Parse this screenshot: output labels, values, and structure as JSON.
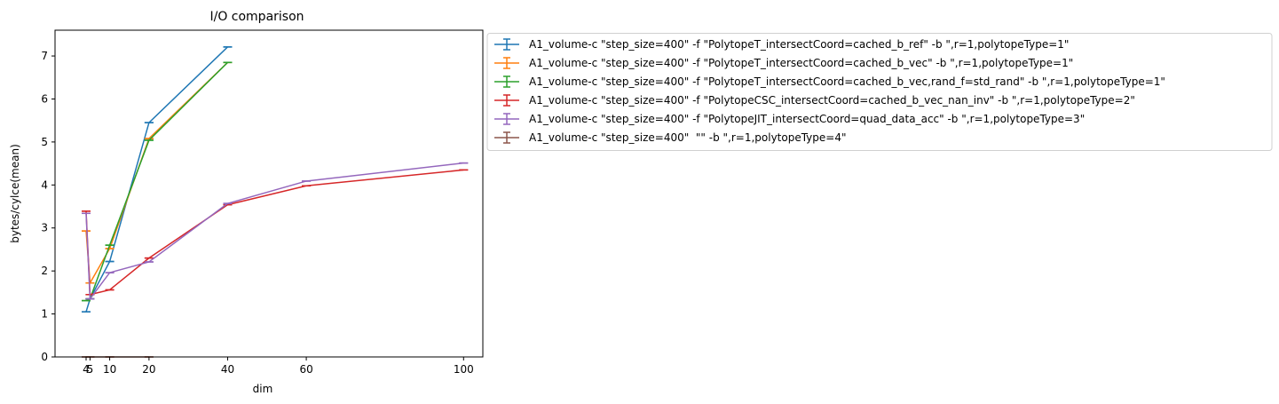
{
  "chart_data": {
    "type": "line",
    "title": "I/O comparison",
    "xlabel": "dim",
    "ylabel": "bytes/cylce(mean)",
    "xlim": [
      -3.9,
      104.9
    ],
    "ylim": [
      0,
      7.6
    ],
    "xticks": [
      4,
      5,
      10,
      20,
      40,
      60,
      100
    ],
    "xtick_labels": [
      "4",
      "5",
      "10",
      "20",
      "40",
      "60",
      "100"
    ],
    "yticks": [
      0,
      1,
      2,
      3,
      4,
      5,
      6,
      7
    ],
    "ytick_labels": [
      "0",
      "1",
      "2",
      "3",
      "4",
      "5",
      "6",
      "7"
    ],
    "grid": false,
    "legend_position": "outside-right-top",
    "series": [
      {
        "name": "A1_volume-c \"step_size=400\" -f \"PolytopeT_intersectCoord=cached_b_ref\" -b \",r=1,polytopeType=1\"",
        "color": "#1f77b4",
        "x": [
          4,
          5,
          10,
          20,
          40
        ],
        "y": [
          1.05,
          1.35,
          2.22,
          5.45,
          7.21
        ],
        "err": [
          0.0,
          0.0,
          0.0,
          0.0,
          0.0
        ]
      },
      {
        "name": "A1_volume-c \"step_size=400\" -f \"PolytopeT_intersectCoord=cached_b_vec\" -b \",r=1,polytopeType=1\"",
        "color": "#ff7f0e",
        "x": [
          4,
          5,
          10,
          20,
          40
        ],
        "y": [
          2.93,
          1.72,
          2.52,
          5.08,
          6.85
        ],
        "err": [
          0.0,
          0.0,
          0.0,
          0.0,
          0.0
        ]
      },
      {
        "name": "A1_volume-c \"step_size=400\" -f \"PolytopeT_intersectCoord=cached_b_vec,rand_f=std_rand\" -b \",r=1,polytopeType=1\"",
        "color": "#2ca02c",
        "x": [
          4,
          5,
          10,
          20,
          40
        ],
        "y": [
          1.31,
          1.35,
          2.6,
          5.04,
          6.85
        ],
        "err": [
          0.0,
          0.0,
          0.0,
          0.0,
          0.0
        ]
      },
      {
        "name": "A1_volume-c \"step_size=400\" -f \"PolytopeCSC_intersectCoord=cached_b_vec_nan_inv\" -b \",r=1,polytopeType=2\"",
        "color": "#d62728",
        "x": [
          4,
          5,
          10,
          20,
          40,
          60,
          100
        ],
        "y": [
          3.39,
          1.45,
          1.56,
          2.3,
          3.54,
          3.98,
          4.35
        ],
        "err": [
          0.0,
          0.0,
          0.0,
          0.0,
          0.0,
          0.0,
          0.0
        ]
      },
      {
        "name": "A1_volume-c \"step_size=400\" -f \"PolytopeJIT_intersectCoord=quad_data_acc\" -b \",r=1,polytopeType=3\"",
        "color": "#9467bd",
        "x": [
          4,
          5,
          10,
          20,
          40,
          60,
          100
        ],
        "y": [
          3.34,
          1.35,
          1.96,
          2.21,
          3.57,
          4.09,
          4.51
        ],
        "err": [
          0.0,
          0.0,
          0.0,
          0.0,
          0.0,
          0.0,
          0.0
        ]
      },
      {
        "name": "A1_volume-c \"step_size=400\"  \"\" -b \",r=1,polytopeType=4\"",
        "color": "#8c564b",
        "x": [
          4,
          5,
          10,
          20
        ],
        "y": [
          0.0,
          0.0,
          0.0,
          0.0
        ],
        "err": [
          0.0,
          0.0,
          0.0,
          0.0
        ]
      }
    ]
  }
}
